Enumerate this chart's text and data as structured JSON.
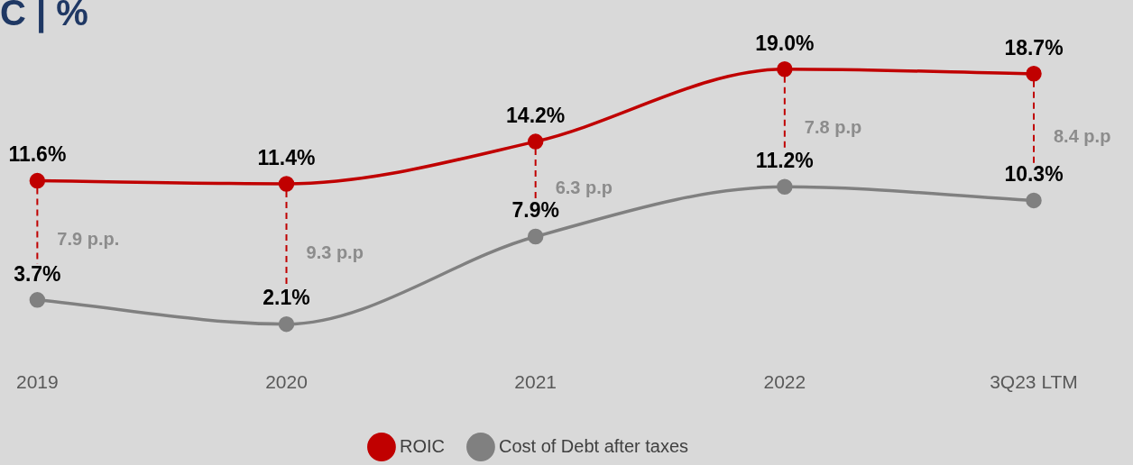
{
  "chart_data": {
    "type": "line",
    "title": "C | %",
    "categories": [
      "2019",
      "2020",
      "2021",
      "2022",
      "3Q23 LTM"
    ],
    "series": [
      {
        "name": "ROIC",
        "color": "#c00000",
        "values": [
          11.6,
          11.4,
          14.2,
          19.0,
          18.7
        ],
        "value_labels": [
          "11.6%",
          "11.4%",
          "14.2%",
          "19.0%",
          "18.7%"
        ]
      },
      {
        "name": "Cost of Debt after taxes",
        "color": "#808080",
        "values": [
          3.7,
          2.1,
          7.9,
          11.2,
          10.3
        ],
        "value_labels": [
          "3.7%",
          "2.1%",
          "7.9%",
          "11.2%",
          "10.3%"
        ]
      }
    ],
    "annotations": [
      "7.9 p.p.",
      "9.3 p.p",
      "6.3 p.p",
      "7.8 p.p",
      "8.4 p.p"
    ],
    "marker": "circle",
    "line_style": "solid",
    "grid": false,
    "legend": "bottom"
  }
}
